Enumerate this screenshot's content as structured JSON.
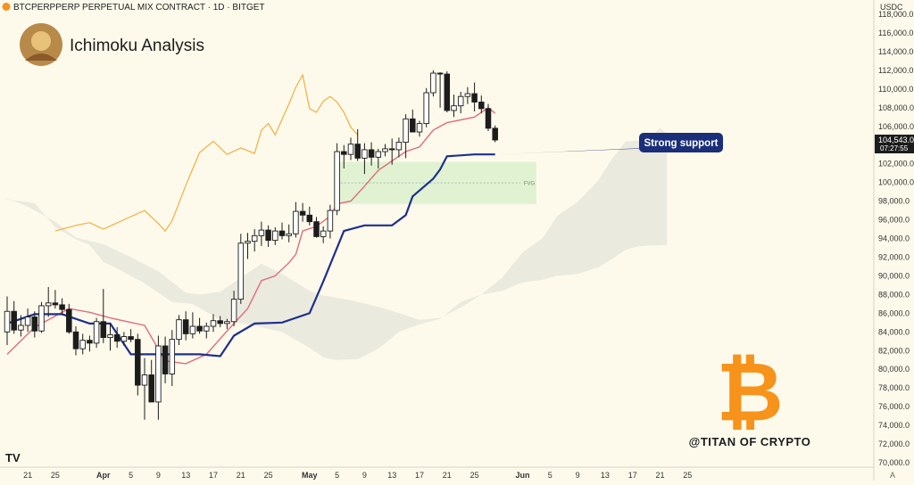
{
  "header": {
    "symbol_line": "BTCPERPPERP PERPETUAL MIX CONTRACT · 1D · BITGET",
    "indicator_title": "Ichimoku Analysis",
    "currency": "USDC",
    "watermark": "@TITAN OF CRYPTO",
    "logo_mark": "TV",
    "auto_scale": "A"
  },
  "annotations": {
    "support_label": "Strong support",
    "fvg_label": "FVG",
    "price_badge": "104,543.0",
    "countdown_badge": "07:27:55"
  },
  "colors": {
    "background": "#fdfaeb",
    "up_candle": "#ffffff",
    "down_candle": "#1c1c1c",
    "tenkan": "#e06c7c",
    "kijun": "#1f2f8f",
    "chikou": "#f0b040",
    "cloud": "#e8e6dc",
    "fvg": "#d6efc8",
    "bitcoin": "#f7931a"
  },
  "chart_data": {
    "type": "candlestick",
    "title": "Ichimoku Analysis",
    "ylabel": "USDC",
    "ylim": [
      70000,
      120000
    ],
    "grid": false,
    "y_ticks": [
      "118,000.0",
      "116,000.0",
      "114,000.0",
      "112,000.0",
      "110,000.0",
      "108,000.0",
      "106,000.0",
      "104,000.0",
      "102,000.0",
      "100,000.0",
      "98,000.0",
      "96,000.0",
      "94,000.0",
      "92,000.0",
      "90,000.0",
      "88,000.0",
      "86,000.0",
      "84,000.0",
      "82,000.0",
      "80,000.0",
      "78,000.0",
      "76,000.0",
      "74,000.0",
      "72,000.0",
      "70,000.0"
    ],
    "x_ticks": [
      {
        "label": "21",
        "date": "2025-03-21"
      },
      {
        "label": "25",
        "date": "2025-03-25"
      },
      {
        "label": "Apr",
        "date": "2025-04-01"
      },
      {
        "label": "5",
        "date": "2025-04-05"
      },
      {
        "label": "9",
        "date": "2025-04-09"
      },
      {
        "label": "13",
        "date": "2025-04-13"
      },
      {
        "label": "17",
        "date": "2025-04-17"
      },
      {
        "label": "21",
        "date": "2025-04-21"
      },
      {
        "label": "25",
        "date": "2025-04-25"
      },
      {
        "label": "May",
        "date": "2025-05-01"
      },
      {
        "label": "5",
        "date": "2025-05-05"
      },
      {
        "label": "9",
        "date": "2025-05-09"
      },
      {
        "label": "13",
        "date": "2025-05-13"
      },
      {
        "label": "17",
        "date": "2025-05-17"
      },
      {
        "label": "21",
        "date": "2025-05-21"
      },
      {
        "label": "25",
        "date": "2025-05-25"
      },
      {
        "label": "Jun",
        "date": "2025-06-01"
      },
      {
        "label": "5",
        "date": "2025-06-05"
      },
      {
        "label": "9",
        "date": "2025-06-09"
      },
      {
        "label": "13",
        "date": "2025-06-13"
      },
      {
        "label": "17",
        "date": "2025-06-17"
      },
      {
        "label": "21",
        "date": "2025-06-21"
      },
      {
        "label": "25",
        "date": "2025-06-25"
      }
    ],
    "start_date": "2025-03-18",
    "candles": [
      {
        "o": 84000,
        "h": 87800,
        "l": 82600,
        "c": 86200
      },
      {
        "o": 86200,
        "h": 87300,
        "l": 83800,
        "c": 84200
      },
      {
        "o": 84200,
        "h": 85800,
        "l": 83500,
        "c": 84700
      },
      {
        "o": 84700,
        "h": 86500,
        "l": 84000,
        "c": 85600
      },
      {
        "o": 85600,
        "h": 86200,
        "l": 83400,
        "c": 84100
      },
      {
        "o": 84100,
        "h": 87200,
        "l": 83900,
        "c": 86800
      },
      {
        "o": 86800,
        "h": 88800,
        "l": 85600,
        "c": 87100
      },
      {
        "o": 87100,
        "h": 88500,
        "l": 86500,
        "c": 86900
      },
      {
        "o": 86900,
        "h": 87600,
        "l": 85800,
        "c": 86400
      },
      {
        "o": 86400,
        "h": 87000,
        "l": 83800,
        "c": 84000
      },
      {
        "o": 84000,
        "h": 84600,
        "l": 81500,
        "c": 82200
      },
      {
        "o": 82200,
        "h": 83800,
        "l": 81600,
        "c": 83100
      },
      {
        "o": 83100,
        "h": 83600,
        "l": 81900,
        "c": 82800
      },
      {
        "o": 82800,
        "h": 85500,
        "l": 82300,
        "c": 85100
      },
      {
        "o": 85100,
        "h": 88600,
        "l": 82800,
        "c": 83400
      },
      {
        "o": 83400,
        "h": 84900,
        "l": 82000,
        "c": 83700
      },
      {
        "o": 83700,
        "h": 84500,
        "l": 82300,
        "c": 83000
      },
      {
        "o": 83000,
        "h": 84000,
        "l": 82500,
        "c": 83500
      },
      {
        "o": 83500,
        "h": 84300,
        "l": 82900,
        "c": 83200
      },
      {
        "o": 83200,
        "h": 83800,
        "l": 77200,
        "c": 78300
      },
      {
        "o": 78300,
        "h": 81200,
        "l": 74600,
        "c": 79400
      },
      {
        "o": 79400,
        "h": 81000,
        "l": 76600,
        "c": 76500
      },
      {
        "o": 76500,
        "h": 83600,
        "l": 74600,
        "c": 82500
      },
      {
        "o": 82500,
        "h": 83500,
        "l": 78500,
        "c": 79500
      },
      {
        "o": 79500,
        "h": 84200,
        "l": 78200,
        "c": 83200
      },
      {
        "o": 83200,
        "h": 85800,
        "l": 82600,
        "c": 85300
      },
      {
        "o": 85300,
        "h": 86200,
        "l": 83100,
        "c": 83800
      },
      {
        "o": 83800,
        "h": 86100,
        "l": 83300,
        "c": 84600
      },
      {
        "o": 84600,
        "h": 85500,
        "l": 83800,
        "c": 84100
      },
      {
        "o": 84100,
        "h": 85000,
        "l": 83300,
        "c": 84600
      },
      {
        "o": 84600,
        "h": 85900,
        "l": 84000,
        "c": 85200
      },
      {
        "o": 85200,
        "h": 85700,
        "l": 84500,
        "c": 84900
      },
      {
        "o": 84900,
        "h": 85400,
        "l": 84300,
        "c": 85100
      },
      {
        "o": 85100,
        "h": 88400,
        "l": 84600,
        "c": 87500
      },
      {
        "o": 87500,
        "h": 94500,
        "l": 87000,
        "c": 93500
      },
      {
        "o": 93500,
        "h": 94600,
        "l": 91800,
        "c": 93700
      },
      {
        "o": 93700,
        "h": 95000,
        "l": 92600,
        "c": 94300
      },
      {
        "o": 94300,
        "h": 95800,
        "l": 93200,
        "c": 94900
      },
      {
        "o": 94900,
        "h": 95400,
        "l": 93100,
        "c": 93800
      },
      {
        "o": 93800,
        "h": 95200,
        "l": 93300,
        "c": 94800
      },
      {
        "o": 94800,
        "h": 95700,
        "l": 93900,
        "c": 94300
      },
      {
        "o": 94300,
        "h": 95500,
        "l": 93600,
        "c": 94500
      },
      {
        "o": 94500,
        "h": 97900,
        "l": 94100,
        "c": 96900
      },
      {
        "o": 96900,
        "h": 97800,
        "l": 95800,
        "c": 96500
      },
      {
        "o": 96500,
        "h": 97400,
        "l": 95400,
        "c": 95800
      },
      {
        "o": 95800,
        "h": 96300,
        "l": 94100,
        "c": 94200
      },
      {
        "o": 94200,
        "h": 95300,
        "l": 93500,
        "c": 94800
      },
      {
        "o": 94800,
        "h": 97600,
        "l": 94000,
        "c": 97000
      },
      {
        "o": 97000,
        "h": 104200,
        "l": 96500,
        "c": 103300
      },
      {
        "o": 103300,
        "h": 104000,
        "l": 101500,
        "c": 103000
      },
      {
        "o": 103000,
        "h": 104800,
        "l": 102400,
        "c": 104100
      },
      {
        "o": 104100,
        "h": 105700,
        "l": 102300,
        "c": 102600
      },
      {
        "o": 102600,
        "h": 104200,
        "l": 100900,
        "c": 103500
      },
      {
        "o": 103500,
        "h": 104300,
        "l": 101800,
        "c": 102700
      },
      {
        "o": 102700,
        "h": 103600,
        "l": 101500,
        "c": 103300
      },
      {
        "o": 103300,
        "h": 104100,
        "l": 102800,
        "c": 103600
      },
      {
        "o": 103600,
        "h": 104700,
        "l": 101900,
        "c": 103500
      },
      {
        "o": 103500,
        "h": 104800,
        "l": 102700,
        "c": 104300
      },
      {
        "o": 104300,
        "h": 107300,
        "l": 102600,
        "c": 106800
      },
      {
        "o": 106800,
        "h": 107800,
        "l": 105600,
        "c": 105400
      },
      {
        "o": 105400,
        "h": 106600,
        "l": 104900,
        "c": 106300
      },
      {
        "o": 106300,
        "h": 110100,
        "l": 105900,
        "c": 109600
      },
      {
        "o": 109600,
        "h": 112000,
        "l": 109200,
        "c": 111700
      },
      {
        "o": 111700,
        "h": 111800,
        "l": 108000,
        "c": 111600
      },
      {
        "o": 111600,
        "h": 111900,
        "l": 107500,
        "c": 107700
      },
      {
        "o": 107700,
        "h": 109400,
        "l": 107000,
        "c": 108200
      },
      {
        "o": 108200,
        "h": 109700,
        "l": 107400,
        "c": 109200
      },
      {
        "o": 109200,
        "h": 110200,
        "l": 108400,
        "c": 109500
      },
      {
        "o": 109500,
        "h": 110700,
        "l": 107600,
        "c": 108600
      },
      {
        "o": 108600,
        "h": 109300,
        "l": 107400,
        "c": 107900
      },
      {
        "o": 107900,
        "h": 108400,
        "l": 105500,
        "c": 105800
      },
      {
        "o": 105800,
        "h": 106100,
        "l": 104300,
        "c": 104543
      }
    ],
    "tenkan": [
      [
        0,
        81600
      ],
      [
        4,
        84500
      ],
      [
        9,
        86500
      ],
      [
        12,
        86100
      ],
      [
        15,
        85500
      ],
      [
        20,
        84700
      ],
      [
        23,
        80900
      ],
      [
        26,
        80600
      ],
      [
        29,
        81600
      ],
      [
        32,
        84100
      ],
      [
        35,
        86500
      ],
      [
        37,
        89500
      ],
      [
        39,
        90000
      ],
      [
        41,
        91400
      ],
      [
        42,
        92300
      ],
      [
        43,
        94800
      ],
      [
        45,
        95300
      ],
      [
        47,
        96400
      ],
      [
        48,
        97700
      ],
      [
        50,
        98000
      ],
      [
        52,
        99600
      ],
      [
        54,
        101300
      ],
      [
        56,
        102300
      ],
      [
        58,
        103300
      ],
      [
        60,
        103800
      ],
      [
        62,
        105600
      ],
      [
        64,
        106400
      ],
      [
        68,
        107000
      ],
      [
        70,
        108000
      ],
      [
        71,
        107400
      ]
    ],
    "kijun": [
      [
        0,
        84900
      ],
      [
        4,
        85900
      ],
      [
        8,
        85900
      ],
      [
        12,
        84900
      ],
      [
        15,
        84900
      ],
      [
        18,
        81600
      ],
      [
        28,
        81600
      ],
      [
        31,
        81400
      ],
      [
        33,
        83600
      ],
      [
        36,
        84900
      ],
      [
        40,
        85000
      ],
      [
        44,
        86000
      ],
      [
        46,
        89400
      ],
      [
        49,
        94800
      ],
      [
        52,
        95400
      ],
      [
        56,
        95400
      ],
      [
        58,
        96500
      ],
      [
        59,
        98500
      ],
      [
        62,
        100400
      ],
      [
        63,
        101400
      ],
      [
        64,
        102800
      ],
      [
        68,
        103000
      ],
      [
        71,
        103000
      ]
    ],
    "chikou": [
      [
        7,
        94800
      ],
      [
        10,
        95400
      ],
      [
        12,
        95700
      ],
      [
        14,
        95000
      ],
      [
        17,
        96000
      ],
      [
        20,
        97000
      ],
      [
        22,
        95600
      ],
      [
        23,
        94800
      ],
      [
        24,
        95900
      ],
      [
        26,
        99700
      ],
      [
        28,
        103200
      ],
      [
        29,
        103800
      ],
      [
        30,
        104400
      ],
      [
        32,
        103000
      ],
      [
        34,
        103700
      ],
      [
        36,
        103100
      ],
      [
        37,
        105600
      ],
      [
        38,
        106300
      ],
      [
        39,
        105100
      ],
      [
        41,
        108400
      ],
      [
        42,
        110200
      ],
      [
        43,
        111500
      ],
      [
        44,
        107900
      ],
      [
        45,
        107500
      ],
      [
        46,
        108700
      ],
      [
        47,
        109200
      ],
      [
        48,
        108600
      ],
      [
        49,
        107500
      ],
      [
        50,
        105900
      ],
      [
        51,
        105100
      ]
    ],
    "cloud_upper": [
      [
        0,
        98300
      ],
      [
        3,
        97400
      ],
      [
        7,
        95800
      ],
      [
        10,
        94100
      ],
      [
        14,
        93400
      ],
      [
        18,
        92000
      ],
      [
        22,
        90500
      ],
      [
        26,
        88200
      ],
      [
        28,
        88000
      ],
      [
        31,
        88300
      ],
      [
        34,
        89800
      ],
      [
        37,
        91300
      ],
      [
        40,
        90200
      ],
      [
        44,
        88400
      ],
      [
        46,
        87900
      ],
      [
        50,
        87400
      ],
      [
        55,
        86500
      ],
      [
        60,
        85300
      ],
      [
        63,
        85500
      ],
      [
        66,
        86600
      ],
      [
        69,
        88000
      ],
      [
        72,
        89800
      ],
      [
        75,
        92500
      ],
      [
        78,
        94100
      ],
      [
        80,
        96400
      ],
      [
        83,
        97900
      ],
      [
        86,
        100200
      ],
      [
        88,
        102500
      ],
      [
        90,
        104400
      ],
      [
        93,
        104500
      ],
      [
        95,
        105800
      ],
      [
        96,
        105200
      ]
    ],
    "cloud_lower": [
      [
        0,
        98200
      ],
      [
        4,
        97800
      ],
      [
        7,
        95200
      ],
      [
        10,
        93900
      ],
      [
        12,
        93300
      ],
      [
        14,
        91500
      ],
      [
        17,
        90400
      ],
      [
        20,
        89200
      ],
      [
        24,
        87200
      ],
      [
        27,
        87000
      ],
      [
        31,
        85300
      ],
      [
        35,
        84800
      ],
      [
        40,
        84000
      ],
      [
        44,
        82300
      ],
      [
        46,
        81300
      ],
      [
        48,
        81000
      ],
      [
        51,
        81100
      ],
      [
        54,
        82200
      ],
      [
        57,
        84000
      ],
      [
        60,
        84800
      ],
      [
        63,
        85400
      ],
      [
        66,
        87200
      ],
      [
        69,
        88000
      ],
      [
        72,
        88400
      ],
      [
        75,
        89300
      ],
      [
        78,
        89600
      ],
      [
        80,
        90000
      ],
      [
        83,
        90200
      ],
      [
        86,
        90900
      ],
      [
        88,
        91800
      ],
      [
        90,
        92800
      ],
      [
        92,
        93200
      ],
      [
        96,
        93300
      ]
    ],
    "fvg": {
      "from_index": 48,
      "to_index": 77,
      "low": 97700,
      "high": 102200
    },
    "support_level": 103000
  }
}
